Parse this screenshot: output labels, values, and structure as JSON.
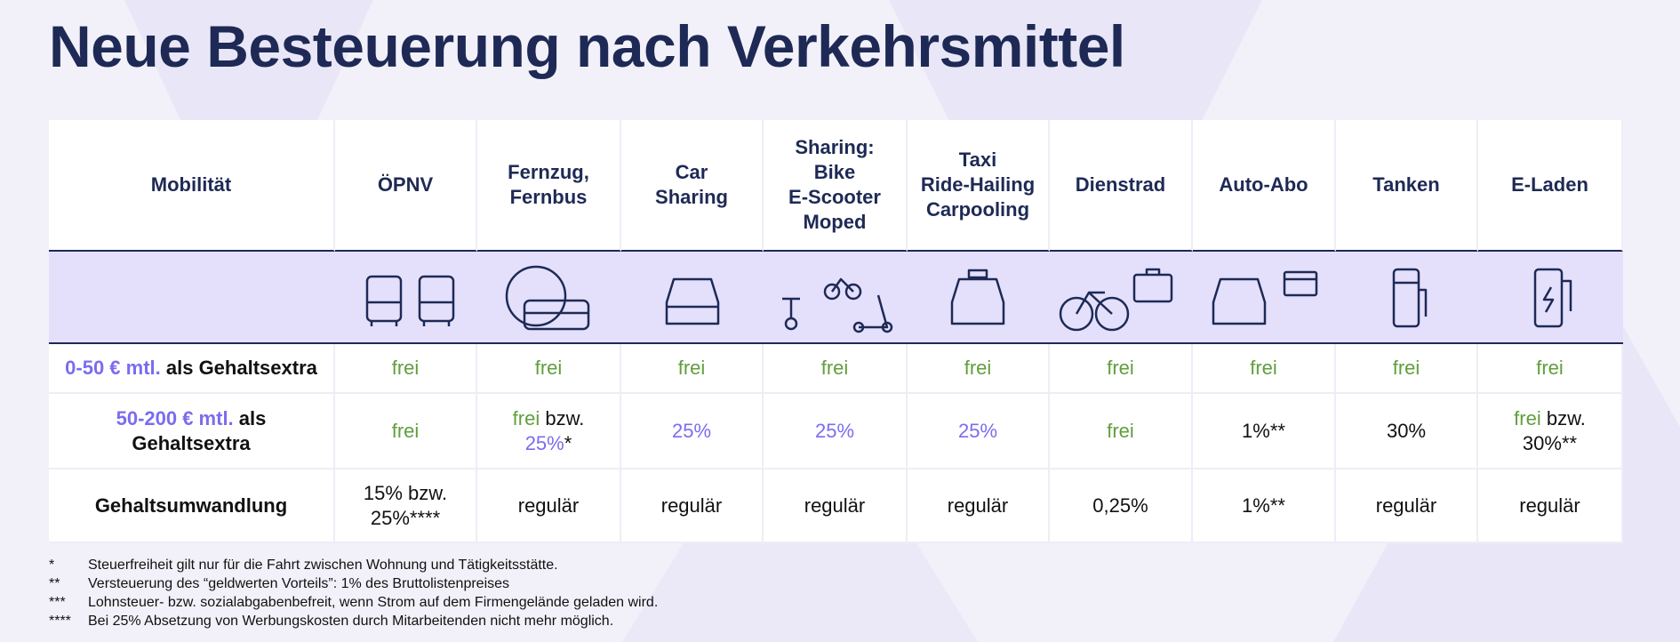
{
  "title": "Neue Besteuerung nach Verkehrsmittel",
  "table": {
    "header": [
      [
        "Mobilität"
      ],
      [
        "ÖPNV"
      ],
      [
        "Fernzug,",
        "Fernbus"
      ],
      [
        "Car",
        "Sharing"
      ],
      [
        "Sharing:",
        "Bike",
        "E-Scooter",
        "Moped"
      ],
      [
        "Taxi",
        "Ride-Hailing",
        "Carpooling"
      ],
      [
        "Dienstrad"
      ],
      [
        "Auto-Abo"
      ],
      [
        "Tanken"
      ],
      [
        "E-Laden"
      ]
    ],
    "rows": [
      {
        "cells": [
          [
            [
              {
                "text": "0-50 € mtl.",
                "tone": "purple"
              },
              {
                "text": "als Gehaltsextra",
                "tone": "plain"
              }
            ]
          ],
          [
            [
              {
                "text": "frei",
                "tone": "green"
              }
            ]
          ],
          [
            [
              {
                "text": "frei",
                "tone": "green"
              }
            ]
          ],
          [
            [
              {
                "text": "frei",
                "tone": "green"
              }
            ]
          ],
          [
            [
              {
                "text": "frei",
                "tone": "green"
              }
            ]
          ],
          [
            [
              {
                "text": "frei",
                "tone": "green"
              }
            ]
          ],
          [
            [
              {
                "text": "frei",
                "tone": "green"
              }
            ]
          ],
          [
            [
              {
                "text": "frei",
                "tone": "green"
              }
            ]
          ],
          [
            [
              {
                "text": "frei",
                "tone": "green"
              }
            ]
          ],
          [
            [
              {
                "text": "frei",
                "tone": "green"
              }
            ]
          ]
        ]
      },
      {
        "cells": [
          [
            [
              {
                "text": "50-200 € mtl.",
                "tone": "purple"
              },
              {
                "text": "als",
                "tone": "plain"
              }
            ],
            [
              {
                "text": "Gehaltsextra",
                "tone": "plain"
              }
            ]
          ],
          [
            [
              {
                "text": "frei",
                "tone": "green"
              }
            ]
          ],
          [
            [
              {
                "text": "frei",
                "tone": "green"
              },
              {
                "text": "bzw.",
                "tone": "plain"
              }
            ],
            [
              {
                "text": "25%",
                "tone": "purple"
              },
              {
                "text": "*",
                "tone": "plain"
              }
            ]
          ],
          [
            [
              {
                "text": "25%",
                "tone": "purple"
              }
            ]
          ],
          [
            [
              {
                "text": "25%",
                "tone": "purple"
              }
            ]
          ],
          [
            [
              {
                "text": "25%",
                "tone": "purple"
              }
            ]
          ],
          [
            [
              {
                "text": "frei",
                "tone": "green"
              }
            ]
          ],
          [
            [
              {
                "text": "1%**",
                "tone": "plain"
              }
            ]
          ],
          [
            [
              {
                "text": "30%",
                "tone": "plain"
              }
            ]
          ],
          [
            [
              {
                "text": "frei",
                "tone": "green"
              },
              {
                "text": "bzw.",
                "tone": "plain"
              }
            ],
            [
              {
                "text": "30%**",
                "tone": "plain"
              }
            ]
          ]
        ]
      },
      {
        "cells": [
          [
            [
              {
                "text": "Gehaltsumwandlung",
                "tone": "plain"
              }
            ]
          ],
          [
            [
              {
                "text": "15% bzw.",
                "tone": "plain"
              }
            ],
            [
              {
                "text": "25%****",
                "tone": "plain"
              }
            ]
          ],
          [
            [
              {
                "text": "regulär",
                "tone": "plain"
              }
            ]
          ],
          [
            [
              {
                "text": "regulär",
                "tone": "plain"
              }
            ]
          ],
          [
            [
              {
                "text": "regulär",
                "tone": "plain"
              }
            ]
          ],
          [
            [
              {
                "text": "regulär",
                "tone": "plain"
              }
            ]
          ],
          [
            [
              {
                "text": "0,25%",
                "tone": "plain"
              }
            ]
          ],
          [
            [
              {
                "text": "1%**",
                "tone": "plain"
              }
            ]
          ],
          [
            [
              {
                "text": "regulär",
                "tone": "plain"
              }
            ]
          ],
          [
            [
              {
                "text": "regulär",
                "tone": "plain"
              }
            ]
          ]
        ]
      }
    ]
  },
  "footnotes": [
    {
      "marker": "*",
      "text": "Steuerfreiheit gilt nur für die Fahrt zwischen Wohnung und Tätigkeitsstätte."
    },
    {
      "marker": "**",
      "text": "Versteuerung des “geldwerten Vorteils”: 1% des Bruttolistenpreises"
    },
    {
      "marker": "***",
      "text": "Lohnsteuer- bzw. sozialabgabenbefreit, wenn Strom auf dem Firmengelände geladen wird."
    },
    {
      "marker": "****",
      "text": "Bei 25% Absetzung von Werbungskosten durch Mitarbeitenden nicht mehr möglich."
    }
  ]
}
